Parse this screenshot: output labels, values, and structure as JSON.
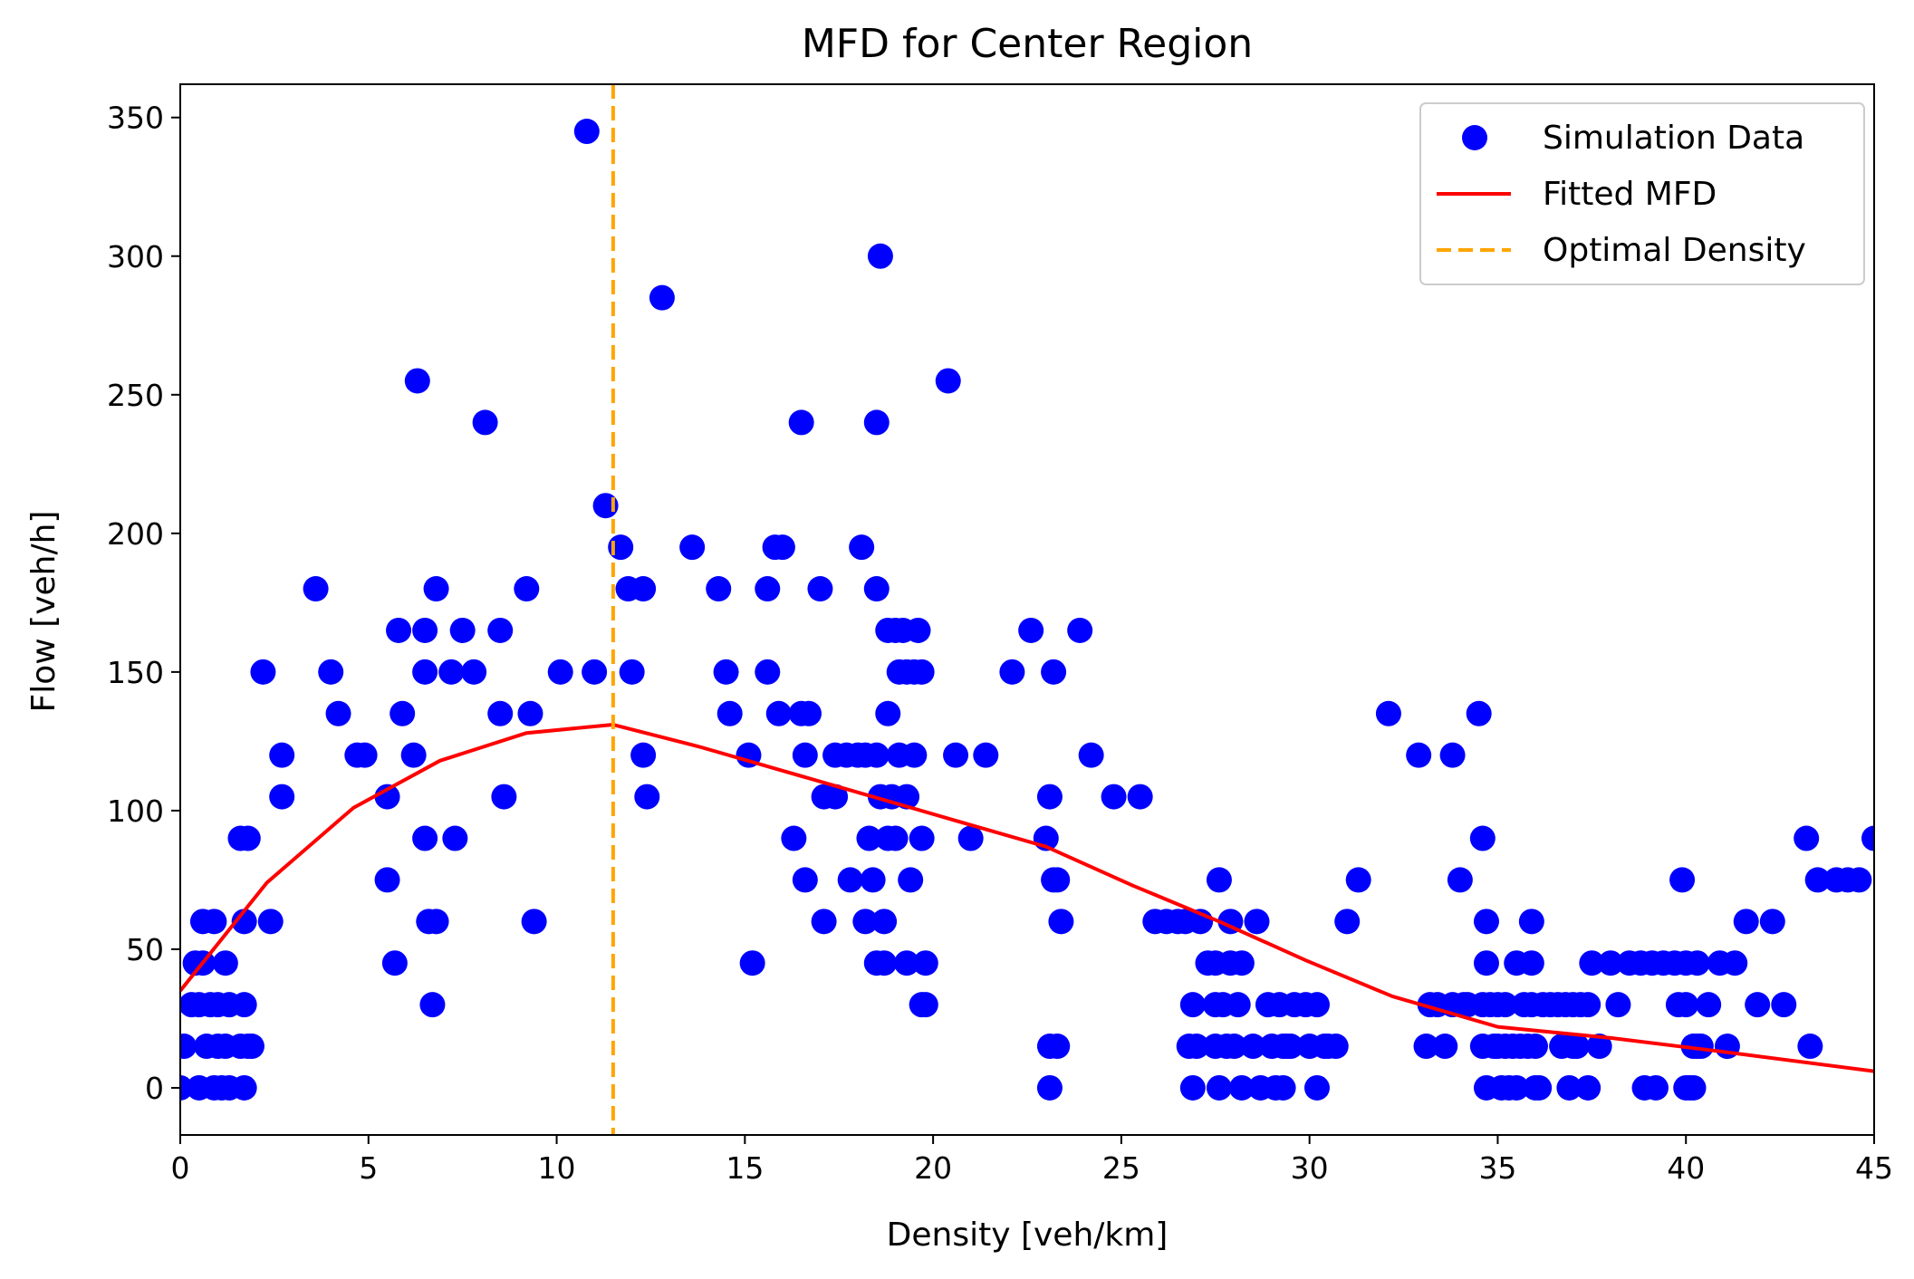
{
  "chart_data": {
    "type": "scatter",
    "title": "MFD for Center Region",
    "xlabel": "Density [veh/km]",
    "ylabel": "Flow [veh/h]",
    "xlim": [
      0,
      45
    ],
    "ylim": [
      -17,
      362
    ],
    "xticks": [
      0,
      5,
      10,
      15,
      20,
      25,
      30,
      35,
      40,
      45
    ],
    "yticks": [
      0,
      50,
      100,
      150,
      200,
      250,
      300,
      350
    ],
    "grid": false,
    "legend_position": "top-right",
    "legend": [
      {
        "label": "Simulation Data",
        "kind": "marker",
        "color": "#0000ff"
      },
      {
        "label": "Fitted MFD",
        "kind": "line",
        "color": "#ff0000"
      },
      {
        "label": "Optimal Density",
        "kind": "dashed-line",
        "color": "#ffa500"
      }
    ],
    "series": [
      {
        "name": "Simulation Data",
        "kind": "scatter",
        "color": "#0000ff",
        "points": [
          [
            0,
            0
          ],
          [
            0.1,
            15
          ],
          [
            0.3,
            30
          ],
          [
            0.4,
            45
          ],
          [
            0.5,
            0
          ],
          [
            0.5,
            30
          ],
          [
            0.6,
            45
          ],
          [
            0.6,
            60
          ],
          [
            0.7,
            15
          ],
          [
            0.8,
            30
          ],
          [
            0.9,
            0
          ],
          [
            0.9,
            60
          ],
          [
            1.0,
            15
          ],
          [
            1.0,
            30
          ],
          [
            1.1,
            0
          ],
          [
            1.2,
            45
          ],
          [
            1.2,
            15
          ],
          [
            1.3,
            0
          ],
          [
            1.3,
            30
          ],
          [
            1.6,
            90
          ],
          [
            1.6,
            15
          ],
          [
            1.7,
            60
          ],
          [
            1.7,
            0
          ],
          [
            1.8,
            90
          ],
          [
            1.7,
            30
          ],
          [
            1.8,
            15
          ],
          [
            1.9,
            15
          ],
          [
            2.2,
            150
          ],
          [
            2.4,
            60
          ],
          [
            2.7,
            120
          ],
          [
            2.7,
            105
          ],
          [
            3.6,
            180
          ],
          [
            4.0,
            150
          ],
          [
            4.2,
            135
          ],
          [
            4.7,
            120
          ],
          [
            4.9,
            120
          ],
          [
            5.5,
            105
          ],
          [
            5.5,
            75
          ],
          [
            5.7,
            45
          ],
          [
            5.8,
            165
          ],
          [
            5.9,
            135
          ],
          [
            6.2,
            120
          ],
          [
            6.3,
            255
          ],
          [
            6.5,
            165
          ],
          [
            6.5,
            150
          ],
          [
            6.5,
            90
          ],
          [
            6.6,
            60
          ],
          [
            6.7,
            30
          ],
          [
            6.8,
            180
          ],
          [
            6.8,
            60
          ],
          [
            7.2,
            150
          ],
          [
            7.3,
            90
          ],
          [
            7.5,
            165
          ],
          [
            7.8,
            150
          ],
          [
            8.1,
            240
          ],
          [
            8.5,
            165
          ],
          [
            8.5,
            135
          ],
          [
            8.6,
            105
          ],
          [
            9.2,
            180
          ],
          [
            9.3,
            135
          ],
          [
            9.4,
            60
          ],
          [
            10.1,
            150
          ],
          [
            10.8,
            345
          ],
          [
            11.0,
            150
          ],
          [
            11.3,
            210
          ],
          [
            11.7,
            195
          ],
          [
            11.9,
            180
          ],
          [
            12.0,
            150
          ],
          [
            12.3,
            180
          ],
          [
            12.3,
            120
          ],
          [
            12.4,
            105
          ],
          [
            12.8,
            285
          ],
          [
            13.6,
            195
          ],
          [
            14.3,
            180
          ],
          [
            14.5,
            150
          ],
          [
            14.6,
            135
          ],
          [
            15.1,
            120
          ],
          [
            15.2,
            45
          ],
          [
            15.6,
            180
          ],
          [
            15.6,
            150
          ],
          [
            15.8,
            195
          ],
          [
            15.9,
            135
          ],
          [
            16.0,
            195
          ],
          [
            16.3,
            90
          ],
          [
            16.5,
            240
          ],
          [
            16.5,
            135
          ],
          [
            16.6,
            75
          ],
          [
            16.6,
            120
          ],
          [
            16.7,
            135
          ],
          [
            17.0,
            180
          ],
          [
            17.1,
            105
          ],
          [
            17.1,
            60
          ],
          [
            17.4,
            105
          ],
          [
            17.4,
            120
          ],
          [
            17.7,
            120
          ],
          [
            17.8,
            75
          ],
          [
            18.0,
            120
          ],
          [
            18.1,
            195
          ],
          [
            18.2,
            60
          ],
          [
            18.2,
            120
          ],
          [
            18.3,
            90
          ],
          [
            18.4,
            75
          ],
          [
            18.5,
            240
          ],
          [
            18.5,
            180
          ],
          [
            18.5,
            45
          ],
          [
            18.5,
            120
          ],
          [
            18.6,
            300
          ],
          [
            18.6,
            105
          ],
          [
            18.7,
            60
          ],
          [
            18.7,
            45
          ],
          [
            18.8,
            90
          ],
          [
            18.8,
            165
          ],
          [
            18.8,
            135
          ],
          [
            18.9,
            105
          ],
          [
            19.0,
            165
          ],
          [
            19.0,
            90
          ],
          [
            19.1,
            150
          ],
          [
            19.1,
            120
          ],
          [
            19.2,
            165
          ],
          [
            19.3,
            150
          ],
          [
            19.3,
            105
          ],
          [
            19.3,
            45
          ],
          [
            19.4,
            75
          ],
          [
            19.5,
            120
          ],
          [
            19.5,
            150
          ],
          [
            19.6,
            165
          ],
          [
            19.7,
            150
          ],
          [
            19.7,
            90
          ],
          [
            19.7,
            30
          ],
          [
            19.8,
            45
          ],
          [
            19.8,
            30
          ],
          [
            20.4,
            255
          ],
          [
            20.6,
            120
          ],
          [
            21.0,
            90
          ],
          [
            21.4,
            120
          ],
          [
            22.1,
            150
          ],
          [
            22.6,
            165
          ],
          [
            23.0,
            90
          ],
          [
            23.1,
            105
          ],
          [
            23.1,
            15
          ],
          [
            23.1,
            0
          ],
          [
            23.2,
            150
          ],
          [
            23.2,
            75
          ],
          [
            23.3,
            15
          ],
          [
            23.3,
            75
          ],
          [
            23.4,
            60
          ],
          [
            23.9,
            165
          ],
          [
            24.2,
            120
          ],
          [
            24.8,
            105
          ],
          [
            25.5,
            105
          ],
          [
            25.9,
            60
          ],
          [
            26.2,
            60
          ],
          [
            26.5,
            60
          ],
          [
            26.7,
            60
          ],
          [
            26.8,
            15
          ],
          [
            26.9,
            0
          ],
          [
            26.9,
            30
          ],
          [
            27.0,
            15
          ],
          [
            27.1,
            60
          ],
          [
            27.3,
            45
          ],
          [
            27.5,
            45
          ],
          [
            27.5,
            30
          ],
          [
            27.5,
            15
          ],
          [
            27.6,
            75
          ],
          [
            27.6,
            0
          ],
          [
            27.7,
            30
          ],
          [
            27.8,
            15
          ],
          [
            27.9,
            60
          ],
          [
            27.9,
            45
          ],
          [
            28.0,
            15
          ],
          [
            28.1,
            30
          ],
          [
            28.2,
            45
          ],
          [
            28.2,
            0
          ],
          [
            28.5,
            15
          ],
          [
            28.6,
            60
          ],
          [
            28.7,
            0
          ],
          [
            28.9,
            30
          ],
          [
            29.0,
            15
          ],
          [
            29.1,
            0
          ],
          [
            29.2,
            30
          ],
          [
            29.3,
            15
          ],
          [
            29.3,
            0
          ],
          [
            29.4,
            15
          ],
          [
            29.5,
            15
          ],
          [
            29.6,
            30
          ],
          [
            29.9,
            30
          ],
          [
            30.0,
            15
          ],
          [
            30.2,
            0
          ],
          [
            30.2,
            30
          ],
          [
            30.4,
            15
          ],
          [
            30.5,
            15
          ],
          [
            30.7,
            15
          ],
          [
            31.0,
            60
          ],
          [
            31.3,
            75
          ],
          [
            32.1,
            135
          ],
          [
            32.9,
            120
          ],
          [
            33.1,
            15
          ],
          [
            33.2,
            30
          ],
          [
            33.4,
            30
          ],
          [
            33.6,
            15
          ],
          [
            33.8,
            120
          ],
          [
            33.8,
            30
          ],
          [
            34.0,
            75
          ],
          [
            34.1,
            30
          ],
          [
            34.2,
            30
          ],
          [
            34.5,
            135
          ],
          [
            34.6,
            90
          ],
          [
            34.6,
            30
          ],
          [
            34.6,
            15
          ],
          [
            34.7,
            60
          ],
          [
            34.7,
            45
          ],
          [
            34.7,
            0
          ],
          [
            34.8,
            30
          ],
          [
            34.9,
            15
          ],
          [
            35.0,
            15
          ],
          [
            35.0,
            30
          ],
          [
            35.1,
            0
          ],
          [
            35.2,
            15
          ],
          [
            35.2,
            30
          ],
          [
            35.3,
            0
          ],
          [
            35.4,
            15
          ],
          [
            35.5,
            45
          ],
          [
            35.5,
            0
          ],
          [
            35.6,
            15
          ],
          [
            35.7,
            30
          ],
          [
            35.8,
            15
          ],
          [
            35.9,
            60
          ],
          [
            35.9,
            45
          ],
          [
            35.9,
            30
          ],
          [
            36.0,
            0
          ],
          [
            36.0,
            15
          ],
          [
            36.1,
            0
          ],
          [
            36.2,
            30
          ],
          [
            36.4,
            30
          ],
          [
            36.6,
            30
          ],
          [
            36.7,
            15
          ],
          [
            36.8,
            30
          ],
          [
            36.9,
            0
          ],
          [
            37.0,
            15
          ],
          [
            37.0,
            30
          ],
          [
            37.1,
            15
          ],
          [
            37.2,
            30
          ],
          [
            37.4,
            0
          ],
          [
            37.4,
            30
          ],
          [
            37.5,
            45
          ],
          [
            37.7,
            15
          ],
          [
            38.0,
            45
          ],
          [
            38.2,
            30
          ],
          [
            38.5,
            45
          ],
          [
            38.8,
            45
          ],
          [
            38.9,
            0
          ],
          [
            39.1,
            45
          ],
          [
            39.2,
            0
          ],
          [
            39.4,
            45
          ],
          [
            39.7,
            45
          ],
          [
            39.8,
            30
          ],
          [
            39.9,
            75
          ],
          [
            40.0,
            0
          ],
          [
            40.0,
            30
          ],
          [
            40.0,
            45
          ],
          [
            40.1,
            0
          ],
          [
            40.2,
            15
          ],
          [
            40.2,
            0
          ],
          [
            40.3,
            15
          ],
          [
            40.3,
            45
          ],
          [
            40.4,
            15
          ],
          [
            40.6,
            30
          ],
          [
            40.9,
            45
          ],
          [
            41.1,
            15
          ],
          [
            41.3,
            45
          ],
          [
            41.6,
            60
          ],
          [
            41.9,
            30
          ],
          [
            42.3,
            60
          ],
          [
            42.6,
            30
          ],
          [
            43.2,
            90
          ],
          [
            43.3,
            15
          ],
          [
            43.5,
            75
          ],
          [
            44.0,
            75
          ],
          [
            44.3,
            75
          ],
          [
            44.6,
            75
          ],
          [
            45.0,
            90
          ]
        ]
      },
      {
        "name": "Fitted MFD",
        "kind": "line",
        "color": "#ff0000",
        "points": [
          [
            0,
            35
          ],
          [
            2.3,
            74
          ],
          [
            4.6,
            101
          ],
          [
            6.9,
            118
          ],
          [
            9.2,
            128
          ],
          [
            11.5,
            131
          ],
          [
            13.8,
            123
          ],
          [
            16.1,
            114
          ],
          [
            18.4,
            105
          ],
          [
            20.7,
            96
          ],
          [
            23.0,
            87
          ],
          [
            25.3,
            73
          ],
          [
            27.6,
            60
          ],
          [
            29.9,
            46
          ],
          [
            32.2,
            33
          ],
          [
            35.0,
            22
          ],
          [
            38.0,
            18
          ],
          [
            41.0,
            13
          ],
          [
            45.0,
            6
          ]
        ]
      },
      {
        "name": "Optimal Density",
        "kind": "vline",
        "color": "#ffa500",
        "x": 11.5
      }
    ]
  }
}
